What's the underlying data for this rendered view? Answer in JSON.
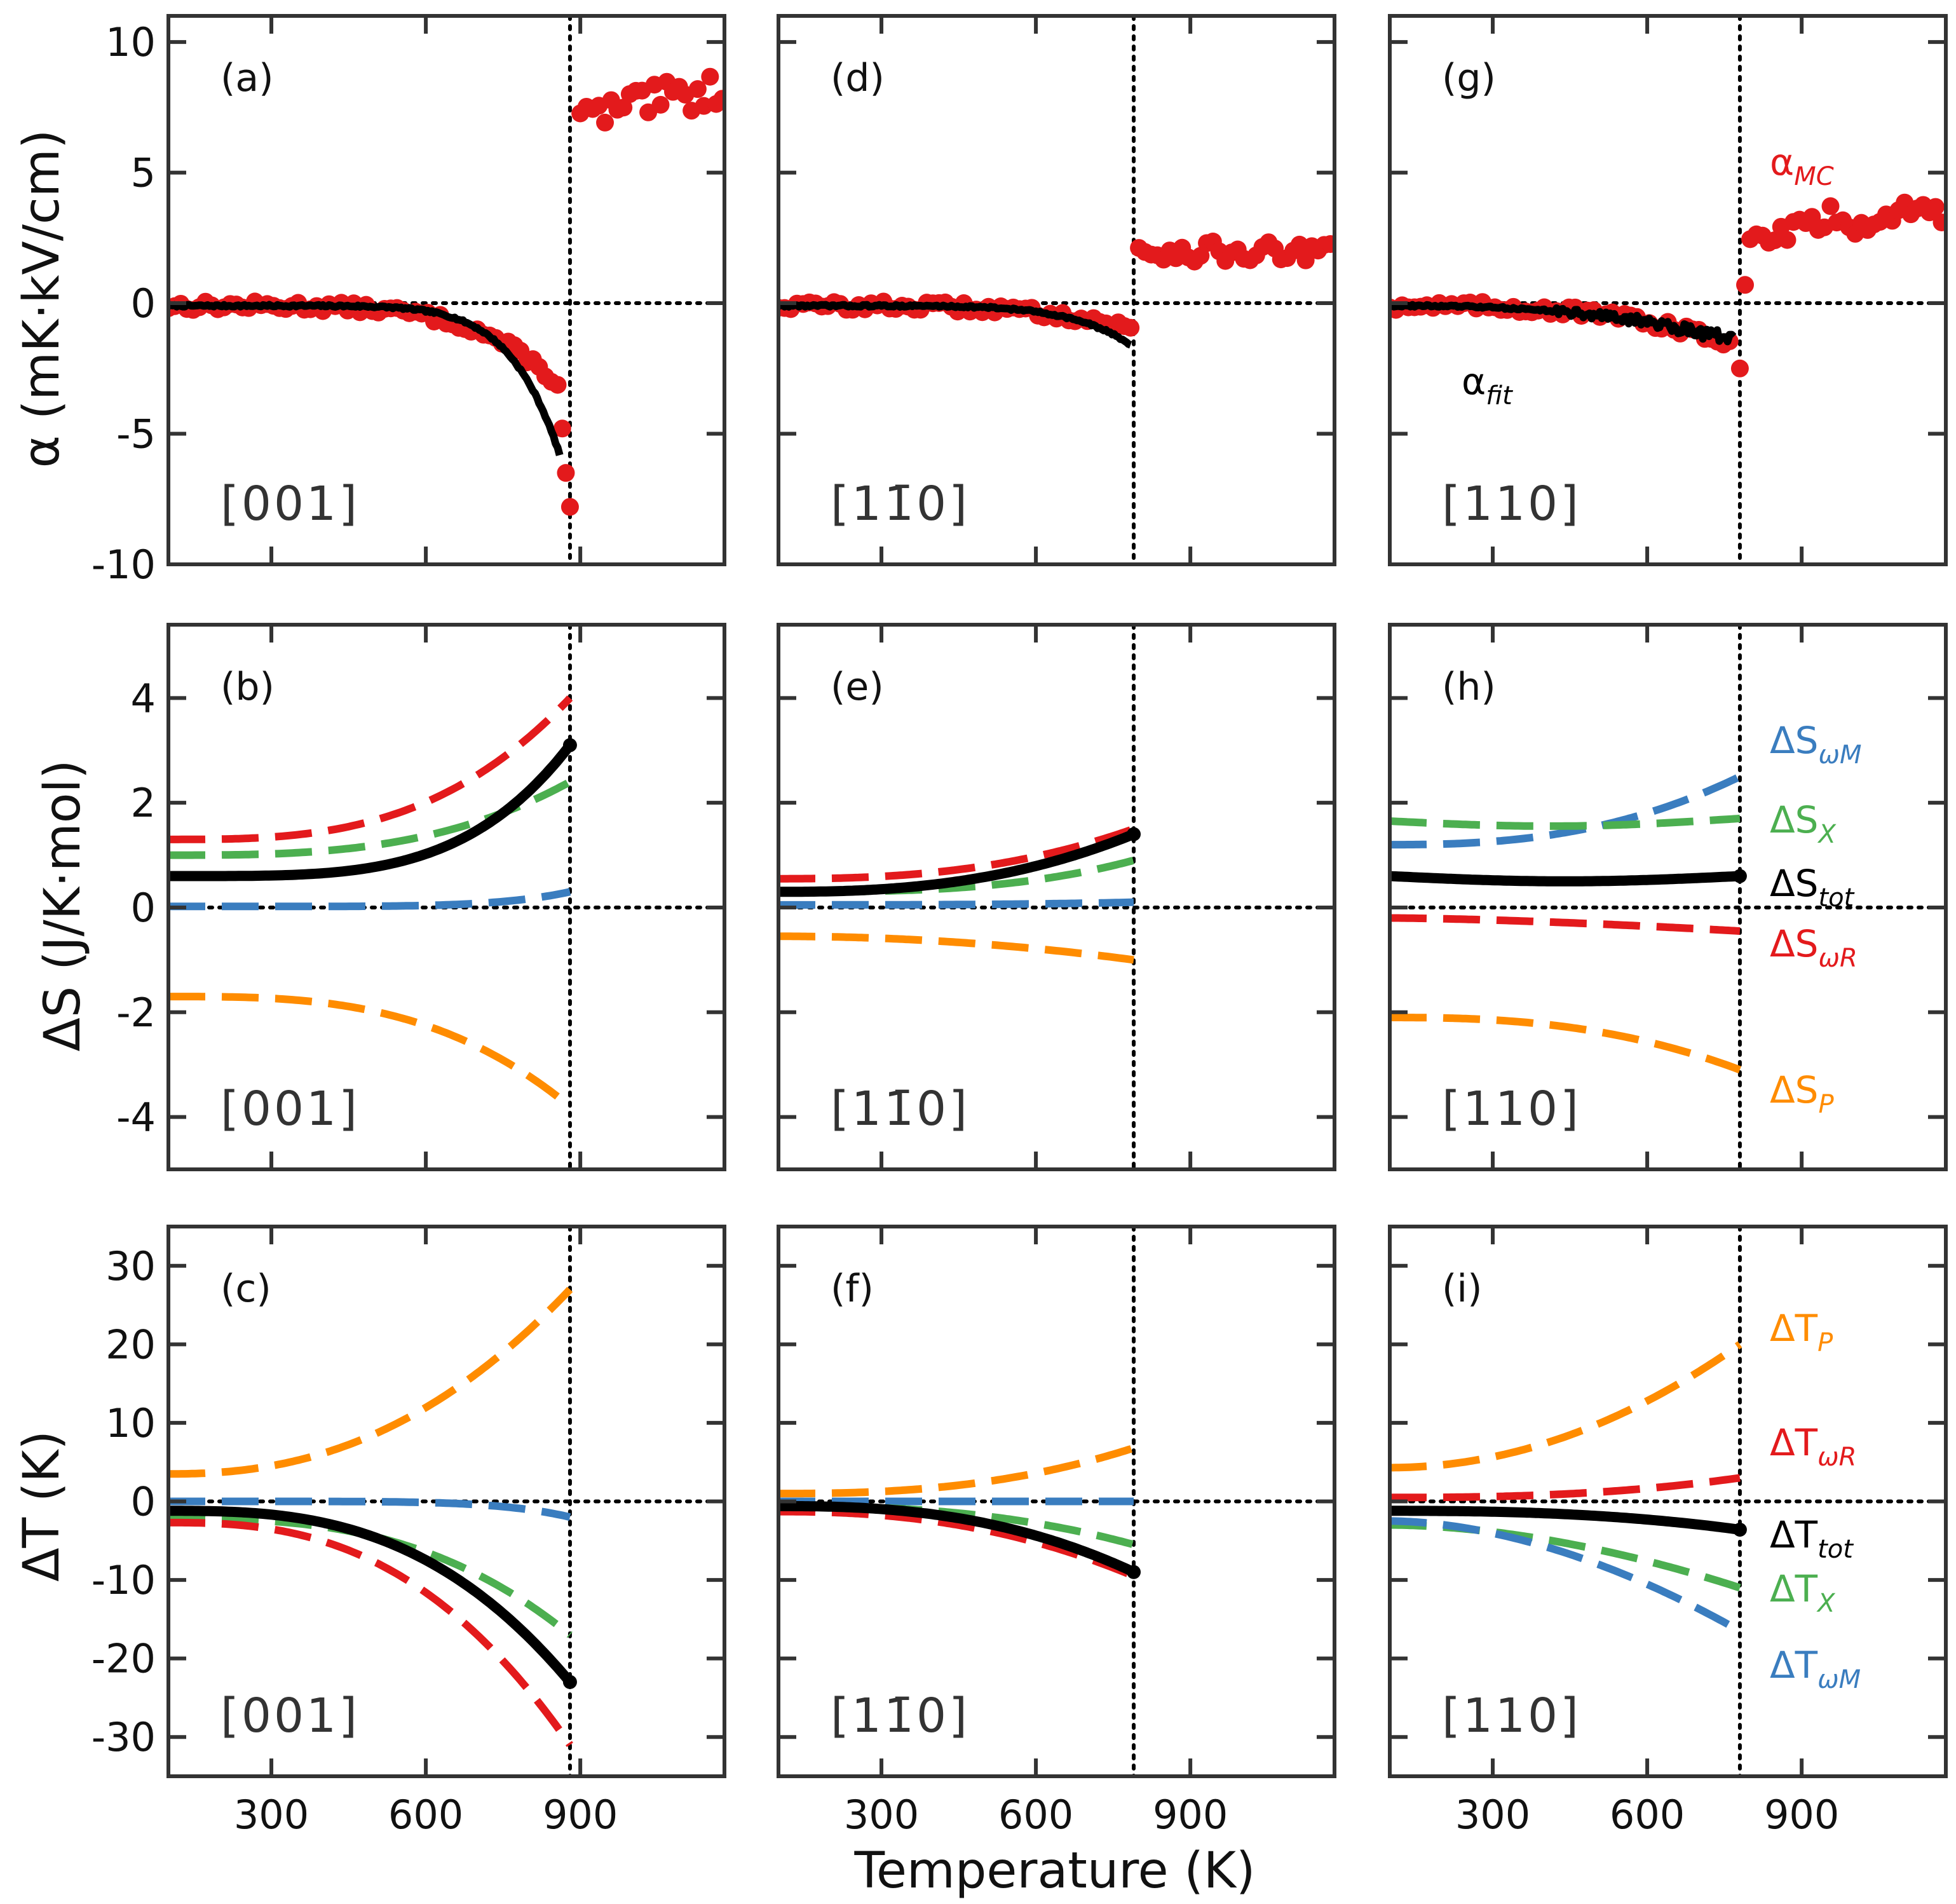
{
  "colors": {
    "red": "#e31a1c",
    "black": "#000000",
    "blue": "#3a7dbf",
    "green": "#4caf50",
    "orange": "#ff8c00"
  },
  "chart_data": {
    "type": "line",
    "layout": "3x3 grid of panels sharing x-axis per column",
    "xlabel": "Temperature (K)",
    "xlim": [
      100,
      1180
    ],
    "xticks": [
      300,
      600,
      900
    ],
    "rows": [
      {
        "quantity": "alpha",
        "ylabel": "α (mK·kV/cm)",
        "ylim": [
          -10,
          11
        ],
        "yticks": [
          10,
          5,
          0,
          -5,
          -10
        ],
        "ytick_labels": [
          "10",
          "5",
          "0",
          "-5",
          "-10"
        ]
      },
      {
        "quantity": "dS",
        "ylabel": "ΔS (J/K·mol)",
        "ylim": [
          -5,
          5.4
        ],
        "yticks": [
          4,
          2,
          0,
          -2,
          -4
        ],
        "ytick_labels": [
          "4",
          "2",
          "0",
          "-2",
          "-4"
        ]
      },
      {
        "quantity": "dT",
        "ylabel": "ΔT (K)",
        "ylim": [
          -35,
          35
        ],
        "yticks": [
          30,
          20,
          10,
          0,
          -10,
          -20,
          -30
        ],
        "ytick_labels": [
          "30",
          "20",
          "10",
          "0",
          "-10",
          "-20",
          "-30"
        ]
      }
    ],
    "columns": [
      {
        "direction": "[001]",
        "transition_T": 880,
        "panels": {
          "alpha": {
            "letter": "(a)",
            "alpha_MC_below": {
              "T_start": 100,
              "T_end": 860,
              "v0": -0.1,
              "v1": -3.2,
              "pow": 5
            },
            "alpha_MC_extra": [
              [
                865,
                -4.8
              ],
              [
                872,
                -6.5
              ],
              [
                880,
                -7.8
              ]
            ],
            "alpha_MC_above": {
              "T_start": 900,
              "T_end": 1180,
              "v0": 7.0,
              "v1": 8.3,
              "noise": 0.7
            },
            "alpha_fit": {
              "T_start": 100,
              "T_end": 860,
              "v0": -0.1,
              "v1": -5.8,
              "pow": 8
            }
          },
          "dS": {
            "letter": "(b)",
            "series": [
              {
                "name": "ΔS_ωR",
                "color": "red",
                "style": "dashed",
                "start": 1.3,
                "end": 4.0,
                "pow": 3
              },
              {
                "name": "ΔS_X",
                "color": "green",
                "style": "dashed",
                "start": 1.0,
                "end": 2.4,
                "pow": 3
              },
              {
                "name": "ΔS_tot",
                "color": "black",
                "style": "solid",
                "start": 0.6,
                "end": 3.1,
                "pow": 4
              },
              {
                "name": "ΔS_ωM",
                "color": "blue",
                "style": "dashed",
                "start": 0.02,
                "end": 0.3,
                "pow": 6
              },
              {
                "name": "ΔS_P",
                "color": "orange",
                "style": "dashed",
                "start": -1.7,
                "end": -3.8,
                "pow": 3
              }
            ]
          },
          "dT": {
            "letter": "(c)",
            "series": [
              {
                "name": "ΔT_P",
                "color": "orange",
                "style": "dashed",
                "start": 3.5,
                "end": 27,
                "pow": 2.3
              },
              {
                "name": "ΔT_ωM",
                "color": "blue",
                "style": "dashed",
                "start": 0,
                "end": -2,
                "pow": 6
              },
              {
                "name": "ΔT_X",
                "color": "green",
                "style": "dashed",
                "start": -2.2,
                "end": -17,
                "pow": 2.8
              },
              {
                "name": "ΔT_tot",
                "color": "black",
                "style": "solid",
                "start": -1.2,
                "end": -23,
                "pow": 2.8
              },
              {
                "name": "ΔT_ωR",
                "color": "red",
                "style": "dashed",
                "start": -2.7,
                "end": -31,
                "pow": 2.6
              }
            ]
          }
        }
      },
      {
        "direction": "[11̄0]",
        "transition_T": 790,
        "panels": {
          "alpha": {
            "letter": "(d)",
            "alpha_MC_below": {
              "T_start": 100,
              "T_end": 790,
              "v0": -0.1,
              "v1": -1.0,
              "pow": 4
            },
            "alpha_MC_extra": [],
            "alpha_MC_above": {
              "T_start": 800,
              "T_end": 1180,
              "v0": 2.0,
              "v1": 1.9,
              "noise": 0.4
            },
            "alpha_fit": {
              "T_start": 100,
              "T_end": 785,
              "v0": -0.1,
              "v1": -1.6,
              "pow": 6
            }
          },
          "dS": {
            "letter": "(e)",
            "series": [
              {
                "name": "ΔS_ωR",
                "color": "red",
                "style": "dashed",
                "start": 0.55,
                "end": 1.5,
                "pow": 2.5
              },
              {
                "name": "ΔS_X",
                "color": "green",
                "style": "dashed",
                "start": 0.3,
                "end": 0.9,
                "pow": 3
              },
              {
                "name": "ΔS_tot",
                "color": "black",
                "style": "solid",
                "start": 0.3,
                "end": 1.4,
                "pow": 2.5
              },
              {
                "name": "ΔS_ωM",
                "color": "blue",
                "style": "dashed",
                "start": 0.05,
                "end": 0.1,
                "pow": 3
              },
              {
                "name": "ΔS_P",
                "color": "orange",
                "style": "dashed",
                "start": -0.55,
                "end": -1.0,
                "pow": 2
              }
            ]
          },
          "dT": {
            "letter": "(f)",
            "series": [
              {
                "name": "ΔT_P",
                "color": "orange",
                "style": "dashed",
                "start": 1.0,
                "end": 6.8,
                "pow": 2.5
              },
              {
                "name": "ΔT_ωM",
                "color": "blue",
                "style": "dashed",
                "start": 0,
                "end": 0,
                "pow": 1
              },
              {
                "name": "ΔT_X",
                "color": "green",
                "style": "dashed",
                "start": -0.6,
                "end": -5.5,
                "pow": 2.5
              },
              {
                "name": "ΔT_ωR",
                "color": "red",
                "style": "dashed",
                "start": -1.3,
                "end": -9.5,
                "pow": 2.3
              },
              {
                "name": "ΔT_tot",
                "color": "black",
                "style": "solid",
                "start": -0.6,
                "end": -9.0,
                "pow": 2.5
              }
            ]
          }
        }
      },
      {
        "direction": "[110]",
        "transition_T": 780,
        "panels": {
          "alpha": {
            "letter": "(g)",
            "alpha_MC_below": {
              "T_start": 100,
              "T_end": 770,
              "v0": -0.1,
              "v1": -1.6,
              "pow": 3
            },
            "alpha_MC_extra": [
              [
                780,
                -2.5
              ],
              [
                790,
                0.7
              ]
            ],
            "alpha_MC_above": {
              "T_start": 800,
              "T_end": 1180,
              "v0": 2.8,
              "v1": 3.6,
              "noise": 0.6
            },
            "alpha_fit": {
              "T_start": 100,
              "T_end": 770,
              "v0": -0.1,
              "v1": -1.4,
              "pow": 2.5,
              "wiggle": true
            }
          },
          "dS": {
            "letter": "(h)",
            "series": [
              {
                "name": "ΔS_ωM",
                "color": "blue",
                "style": "dashed",
                "start": 1.2,
                "end": 2.5,
                "pow": 2.5
              },
              {
                "name": "ΔS_X",
                "color": "green",
                "style": "dashed",
                "start": 1.65,
                "end": 1.7,
                "dip": -0.12
              },
              {
                "name": "ΔS_tot",
                "color": "black",
                "style": "solid",
                "start": 0.6,
                "end": 0.6,
                "dip": -0.1
              },
              {
                "name": "ΔS_ωR",
                "color": "red",
                "style": "dashed",
                "start": -0.2,
                "end": -0.45,
                "pow": 1.5
              },
              {
                "name": "ΔS_P",
                "color": "orange",
                "style": "dashed",
                "start": -2.1,
                "end": -3.1,
                "pow": 2.5
              }
            ]
          },
          "dT": {
            "letter": "(i)",
            "series": [
              {
                "name": "ΔT_P",
                "color": "orange",
                "style": "dashed",
                "start": 4.3,
                "end": 20,
                "pow": 2
              },
              {
                "name": "ΔT_ωR",
                "color": "red",
                "style": "dashed",
                "start": 0.5,
                "end": 3.0,
                "pow": 2.5
              },
              {
                "name": "ΔT_tot",
                "color": "black",
                "style": "solid",
                "start": -1.2,
                "end": -3.6,
                "pow": 2.5
              },
              {
                "name": "ΔT_X",
                "color": "green",
                "style": "dashed",
                "start": -3.0,
                "end": -11,
                "pow": 1.8
              },
              {
                "name": "ΔT_ωM",
                "color": "blue",
                "style": "dashed",
                "start": -2.5,
                "end": -16.5,
                "pow": 1.8
              }
            ]
          }
        }
      }
    ],
    "legends": {
      "alpha": [
        {
          "base": "α",
          "sub": "MC",
          "color": "red"
        },
        {
          "base": "α",
          "sub": "fit",
          "color": "black"
        }
      ],
      "dS": [
        {
          "base": "ΔS",
          "sub": "ωM",
          "color": "blue"
        },
        {
          "base": "ΔS",
          "sub": "X",
          "color": "green"
        },
        {
          "base": "ΔS",
          "sub": "tot",
          "color": "black"
        },
        {
          "base": "ΔS",
          "sub": "ωR",
          "color": "red"
        },
        {
          "base": "ΔS",
          "sub": "P",
          "color": "orange"
        }
      ],
      "dT": [
        {
          "base": "ΔT",
          "sub": "P",
          "color": "orange"
        },
        {
          "base": "ΔT",
          "sub": "ωR",
          "color": "red"
        },
        {
          "base": "ΔT",
          "sub": "tot",
          "color": "black"
        },
        {
          "base": "ΔT",
          "sub": "X",
          "color": "green"
        },
        {
          "base": "ΔT",
          "sub": "ωM",
          "color": "blue"
        }
      ]
    }
  }
}
